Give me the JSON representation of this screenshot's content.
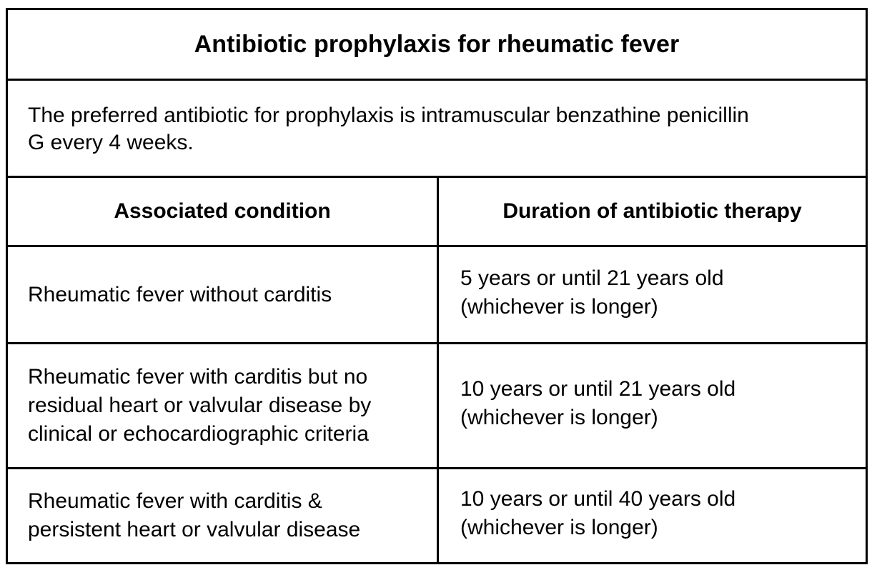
{
  "table": {
    "title": "Antibiotic prophylaxis for rheumatic fever",
    "note": "The preferred antibiotic for prophylaxis is intramuscular benzathine penicillin\nG every 4 weeks.",
    "headers": {
      "condition": "Associated condition",
      "duration": "Duration of antibiotic therapy"
    },
    "rows": [
      {
        "condition": "Rheumatic fever without carditis",
        "duration": "5 years or until 21 years old\n(whichever is longer)"
      },
      {
        "condition": "Rheumatic fever with carditis but no\nresidual heart or valvular disease by\nclinical or echocardiographic criteria",
        "duration": "10 years or until 21 years old\n(whichever is longer)"
      },
      {
        "condition": "Rheumatic fever with carditis &\npersistent heart or valvular disease",
        "duration": "10 years or until 40 years old\n(whichever is longer)"
      }
    ]
  }
}
